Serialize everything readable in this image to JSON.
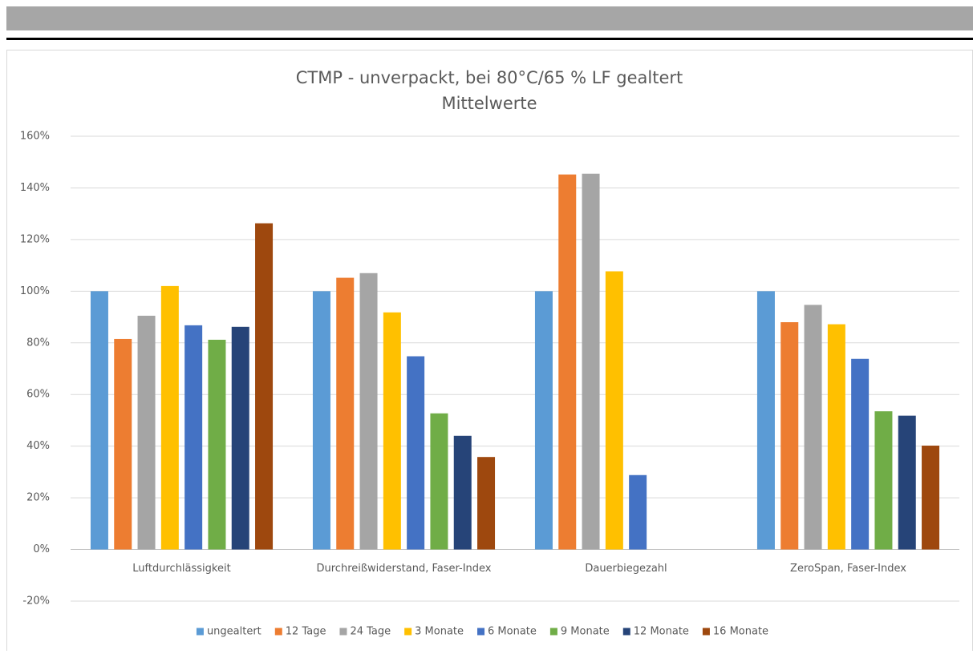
{
  "chart_data": {
    "type": "bar",
    "title": "CTMP - unverpackt, bei 80°C/65 % LF gealtert",
    "subtitle": "Mittelwerte",
    "categories": [
      "Luftdurchlässigkeit",
      "Durchreißwiderstand, Faser-Index",
      "Dauerbiegezahl",
      "ZeroSpan, Faser-Index"
    ],
    "series": [
      {
        "name": "ungealtert",
        "color": "#5b9bd5",
        "values": [
          100,
          100,
          100,
          100
        ]
      },
      {
        "name": "12 Tage",
        "color": "#ed7d31",
        "values": [
          81.5,
          105.2,
          145.2,
          88
        ]
      },
      {
        "name": "24 Tage",
        "color": "#a5a5a5",
        "values": [
          90.5,
          107,
          145.5,
          94.7
        ]
      },
      {
        "name": "3 Monate",
        "color": "#ffc000",
        "values": [
          102,
          91.8,
          107.7,
          87.2
        ]
      },
      {
        "name": "6 Monate",
        "color": "#4472c4",
        "values": [
          86.8,
          74.8,
          28.8,
          73.8
        ]
      },
      {
        "name": "9 Monate",
        "color": "#70ad47",
        "values": [
          81.2,
          52.7,
          null,
          53.5
        ]
      },
      {
        "name": "12 Monate",
        "color": "#264478",
        "values": [
          86.2,
          44,
          null,
          51.8
        ]
      },
      {
        "name": "16 Monate",
        "color": "#9e480e",
        "values": [
          126.3,
          35.8,
          null,
          40.2
        ]
      }
    ],
    "ylim": [
      -20,
      160
    ],
    "yticks": [
      {
        "value": -20,
        "label": "-20%"
      },
      {
        "value": 0,
        "label": "0%"
      },
      {
        "value": 20,
        "label": "20%"
      },
      {
        "value": 40,
        "label": "40%"
      },
      {
        "value": 60,
        "label": "60%"
      },
      {
        "value": 80,
        "label": "80%"
      },
      {
        "value": 100,
        "label": "100%"
      },
      {
        "value": 120,
        "label": "120%"
      },
      {
        "value": 140,
        "label": "140%"
      },
      {
        "value": 160,
        "label": "160%"
      }
    ],
    "grid": true,
    "legend": "bottom"
  }
}
